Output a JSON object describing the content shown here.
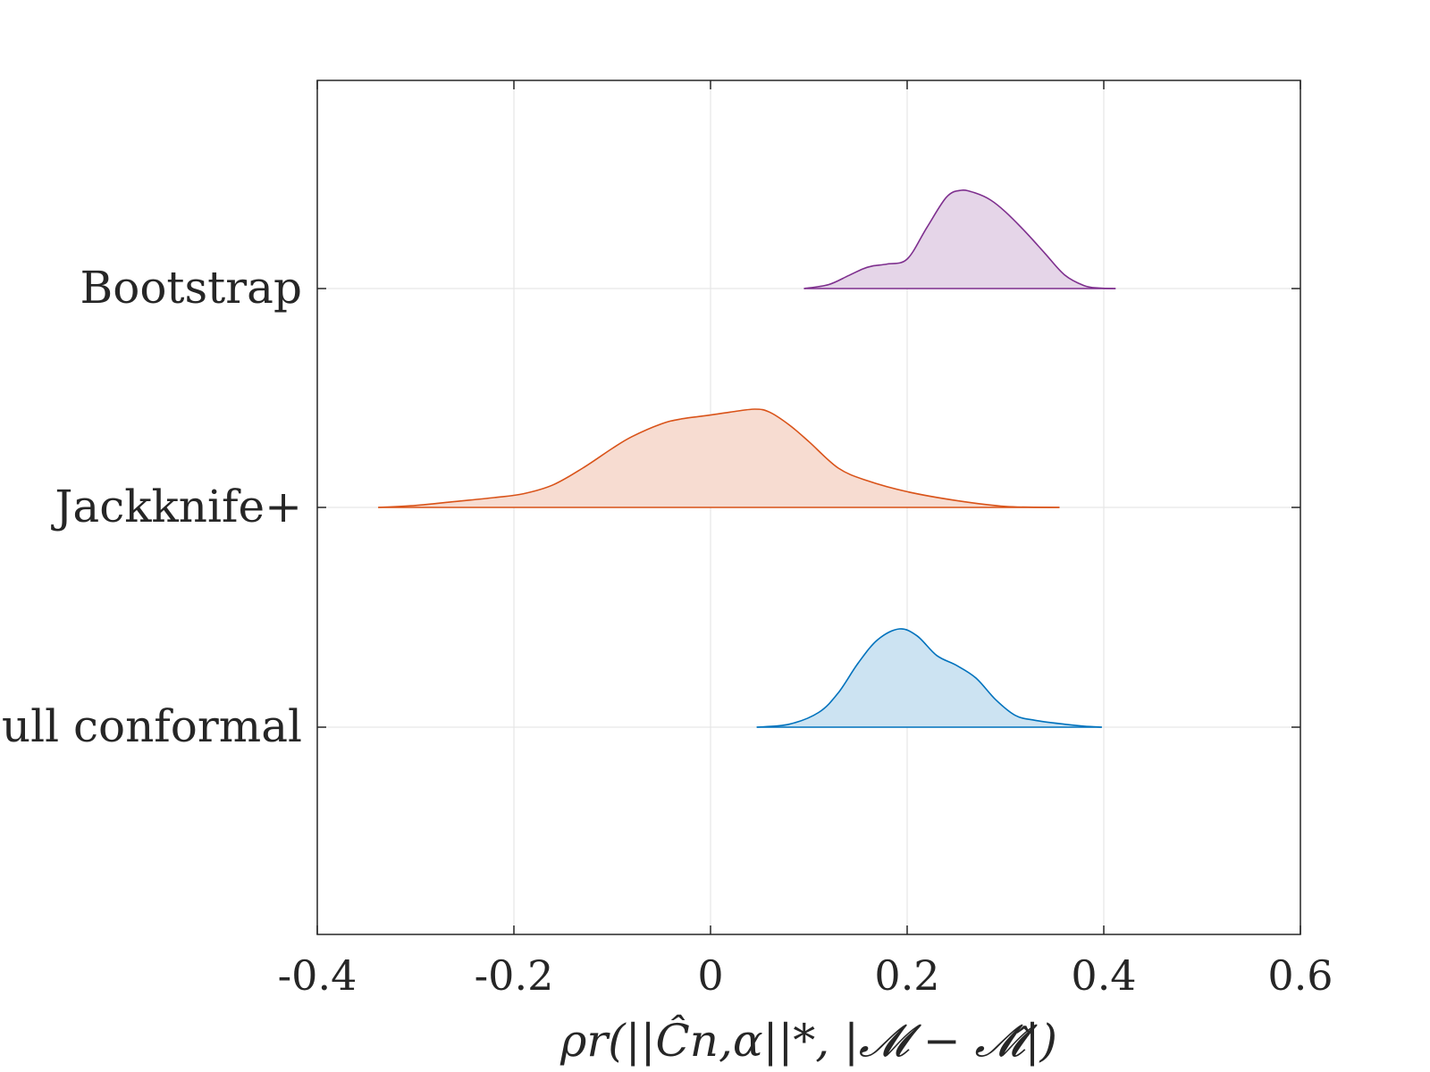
{
  "chart_data": {
    "type": "ridgeline",
    "title": "",
    "xlabel": "ρr(||Ĉn,α||*, |𝓜 − 𝓜̂|)",
    "ylabel": "",
    "xlim": [
      -0.4,
      0.6
    ],
    "xticks": [
      -0.4,
      -0.2,
      0,
      0.2,
      0.4,
      0.6
    ],
    "xtick_labels": [
      "-0.4",
      "-0.2",
      "0",
      "0.2",
      "0.4",
      "0.6"
    ],
    "grid": true,
    "series": [
      {
        "name": "Bootstrap",
        "color": "#7E2F8E",
        "fill": "#E5D5E8",
        "x": [
          0.095,
          0.12,
          0.14,
          0.155,
          0.165,
          0.18,
          0.2,
          0.22,
          0.24,
          0.255,
          0.27,
          0.285,
          0.3,
          0.32,
          0.34,
          0.36,
          0.38,
          0.395,
          0.412
        ],
        "density": [
          0.0,
          0.04,
          0.13,
          0.2,
          0.23,
          0.25,
          0.3,
          0.62,
          0.93,
          1.0,
          0.97,
          0.9,
          0.78,
          0.58,
          0.36,
          0.14,
          0.03,
          0.005,
          0.0
        ]
      },
      {
        "name": "Jackknife+",
        "color": "#D95319",
        "fill": "#F7DCD1",
        "x": [
          -0.338,
          -0.3,
          -0.26,
          -0.22,
          -0.19,
          -0.16,
          -0.13,
          -0.1,
          -0.08,
          -0.05,
          -0.03,
          0.0,
          0.02,
          0.045,
          0.06,
          0.08,
          0.1,
          0.13,
          0.16,
          0.2,
          0.25,
          0.3,
          0.355
        ],
        "density": [
          0.0,
          0.02,
          0.06,
          0.1,
          0.14,
          0.23,
          0.4,
          0.6,
          0.72,
          0.85,
          0.9,
          0.94,
          0.97,
          1.0,
          0.97,
          0.84,
          0.67,
          0.4,
          0.27,
          0.16,
          0.07,
          0.01,
          0.0
        ]
      },
      {
        "name": "Full conformal",
        "color": "#0072BD",
        "fill": "#CCE3F2",
        "x": [
          0.047,
          0.08,
          0.11,
          0.13,
          0.15,
          0.17,
          0.192,
          0.21,
          0.23,
          0.25,
          0.27,
          0.29,
          0.31,
          0.33,
          0.36,
          0.38,
          0.398
        ],
        "density": [
          0.0,
          0.03,
          0.15,
          0.35,
          0.65,
          0.89,
          1.0,
          0.93,
          0.73,
          0.63,
          0.5,
          0.28,
          0.12,
          0.07,
          0.03,
          0.01,
          0.0
        ]
      }
    ]
  }
}
